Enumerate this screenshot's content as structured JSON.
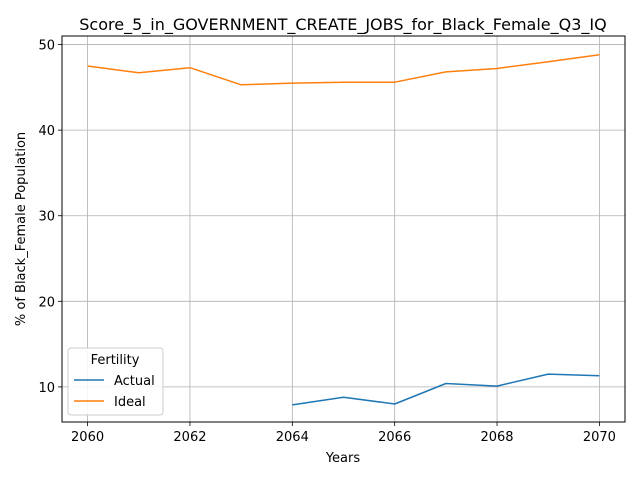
{
  "chart_data": {
    "type": "line",
    "title": "Score_5_in_GOVERNMENT_CREATE_JOBS_for_Black_Female_Q3_IQ",
    "xlabel": "Years",
    "ylabel": "% of Black_Female Population",
    "x": [
      2060,
      2061,
      2062,
      2063,
      2064,
      2065,
      2066,
      2067,
      2068,
      2069,
      2070
    ],
    "xlim": [
      2059.5,
      2070.5
    ],
    "ylim": [
      5.9,
      51.0
    ],
    "xticks": [
      2060,
      2062,
      2064,
      2066,
      2068,
      2070
    ],
    "yticks": [
      10,
      20,
      30,
      40,
      50
    ],
    "grid": true,
    "legend": {
      "title": "Fertility",
      "placement": "lower-left"
    },
    "series": [
      {
        "name": "Actual",
        "color": "#1f77b4",
        "values": [
          null,
          null,
          null,
          null,
          7.9,
          8.8,
          8.0,
          10.4,
          10.1,
          11.5,
          11.3
        ]
      },
      {
        "name": "Ideal",
        "color": "#ff7f0e",
        "values": [
          47.5,
          46.7,
          47.3,
          45.3,
          45.5,
          45.6,
          45.6,
          46.8,
          47.2,
          48.0,
          48.8
        ]
      }
    ]
  }
}
